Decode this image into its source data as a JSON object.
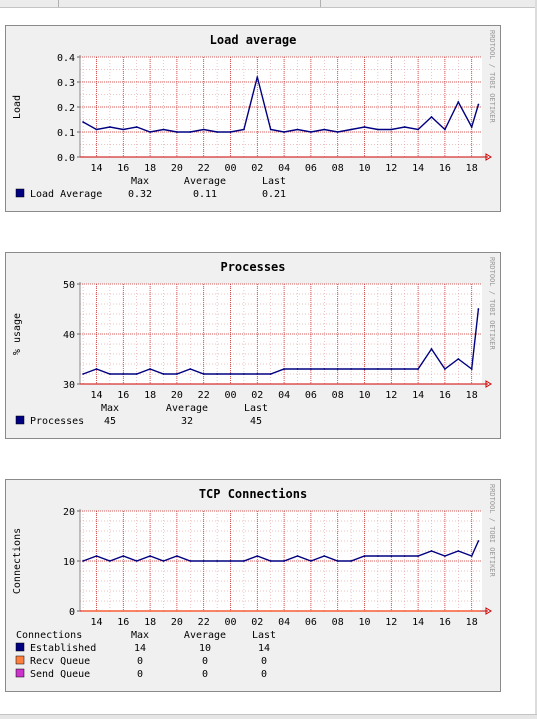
{
  "colors": {
    "canvas": "#ffffff",
    "grid": "#cc3333",
    "axis": "#cc0000",
    "line": "#000080",
    "frame": "#f0f0f0"
  },
  "x_ticks": [
    "14",
    "16",
    "18",
    "20",
    "22",
    "00",
    "02",
    "04",
    "06",
    "08",
    "10",
    "12",
    "14",
    "16",
    "18"
  ],
  "watermark": "RRDTOOL / TOBI OETIKER",
  "charts": [
    {
      "title": "Load average",
      "ylabel": "Load",
      "ylim": [
        0,
        0.4
      ],
      "y_ticks": [
        "0.0",
        "0.1",
        "0.2",
        "0.3",
        "0.4"
      ],
      "stat_headers": [
        "Max",
        "Average",
        "Last"
      ],
      "series": [
        {
          "name": "Load Average",
          "color": "#000080",
          "max": "0.32",
          "average": "0.11",
          "last": "0.21"
        }
      ]
    },
    {
      "title": "Processes",
      "ylabel": "% usage",
      "ylim": [
        30,
        50
      ],
      "y_ticks": [
        "30",
        "40",
        "50"
      ],
      "stat_headers": [
        "Max",
        "Average",
        "Last"
      ],
      "series": [
        {
          "name": "Processes",
          "color": "#000080",
          "max": "45",
          "average": "32",
          "last": "45"
        }
      ]
    },
    {
      "title": "TCP Connections",
      "ylabel": "Connections",
      "ylim": [
        0,
        20
      ],
      "y_ticks": [
        "0",
        "10",
        "20"
      ],
      "legend_title": "Connections",
      "stat_headers": [
        "Max",
        "Average",
        "Last"
      ],
      "series": [
        {
          "name": "Established",
          "color": "#000080",
          "max": "14",
          "average": "10",
          "last": "14"
        },
        {
          "name": "Recv Queue",
          "color": "#ff7f3f",
          "max": "0",
          "average": "0",
          "last": "0"
        },
        {
          "name": "Send Queue",
          "color": "#cc33cc",
          "max": "0",
          "average": "0",
          "last": "0"
        }
      ]
    }
  ],
  "chart_data": [
    {
      "type": "line",
      "title": "Load average",
      "ylabel": "Load",
      "ylim": [
        0,
        0.4
      ],
      "x": [
        "13",
        "14",
        "15",
        "16",
        "17",
        "18",
        "19",
        "20",
        "21",
        "22",
        "23",
        "00",
        "01",
        "02",
        "03",
        "04",
        "05",
        "06",
        "07",
        "08",
        "09",
        "10",
        "11",
        "12",
        "13",
        "14",
        "15",
        "16",
        "17",
        "18",
        "18.5"
      ],
      "series": [
        {
          "name": "Load Average",
          "values": [
            0.14,
            0.11,
            0.12,
            0.11,
            0.12,
            0.1,
            0.11,
            0.1,
            0.1,
            0.11,
            0.1,
            0.1,
            0.11,
            0.32,
            0.11,
            0.1,
            0.11,
            0.1,
            0.11,
            0.1,
            0.11,
            0.12,
            0.11,
            0.11,
            0.12,
            0.11,
            0.16,
            0.11,
            0.22,
            0.12,
            0.21
          ]
        }
      ]
    },
    {
      "type": "line",
      "title": "Processes",
      "ylabel": "% usage",
      "ylim": [
        30,
        50
      ],
      "x": [
        "13",
        "14",
        "15",
        "16",
        "17",
        "18",
        "19",
        "20",
        "21",
        "22",
        "23",
        "00",
        "01",
        "02",
        "03",
        "04",
        "05",
        "06",
        "07",
        "08",
        "09",
        "10",
        "11",
        "12",
        "13",
        "14",
        "15",
        "16",
        "17",
        "18",
        "18.5"
      ],
      "series": [
        {
          "name": "Processes",
          "values": [
            32,
            33,
            32,
            32,
            32,
            33,
            32,
            32,
            33,
            32,
            32,
            32,
            32,
            32,
            32,
            33,
            33,
            33,
            33,
            33,
            33,
            33,
            33,
            33,
            33,
            33,
            37,
            33,
            35,
            33,
            45
          ]
        }
      ]
    },
    {
      "type": "line",
      "title": "TCP Connections",
      "ylabel": "Connections",
      "ylim": [
        0,
        20
      ],
      "x": [
        "13",
        "14",
        "15",
        "16",
        "17",
        "18",
        "19",
        "20",
        "21",
        "22",
        "23",
        "00",
        "01",
        "02",
        "03",
        "04",
        "05",
        "06",
        "07",
        "08",
        "09",
        "10",
        "11",
        "12",
        "13",
        "14",
        "15",
        "16",
        "17",
        "18",
        "18.5"
      ],
      "series": [
        {
          "name": "Established",
          "values": [
            10,
            11,
            10,
            11,
            10,
            11,
            10,
            11,
            10,
            10,
            10,
            10,
            10,
            11,
            10,
            10,
            11,
            10,
            11,
            10,
            10,
            11,
            11,
            11,
            11,
            11,
            12,
            11,
            12,
            11,
            14
          ]
        },
        {
          "name": "Recv Queue",
          "values": [
            0,
            0,
            0,
            0,
            0,
            0,
            0,
            0,
            0,
            0,
            0,
            0,
            0,
            0,
            0,
            0,
            0,
            0,
            0,
            0,
            0,
            0,
            0,
            0,
            0,
            0,
            0,
            0,
            0,
            0,
            0
          ]
        },
        {
          "name": "Send Queue",
          "values": [
            0,
            0,
            0,
            0,
            0,
            0,
            0,
            0,
            0,
            0,
            0,
            0,
            0,
            0,
            0,
            0,
            0,
            0,
            0,
            0,
            0,
            0,
            0,
            0,
            0,
            0,
            0,
            0,
            0,
            0,
            0
          ]
        }
      ]
    }
  ]
}
